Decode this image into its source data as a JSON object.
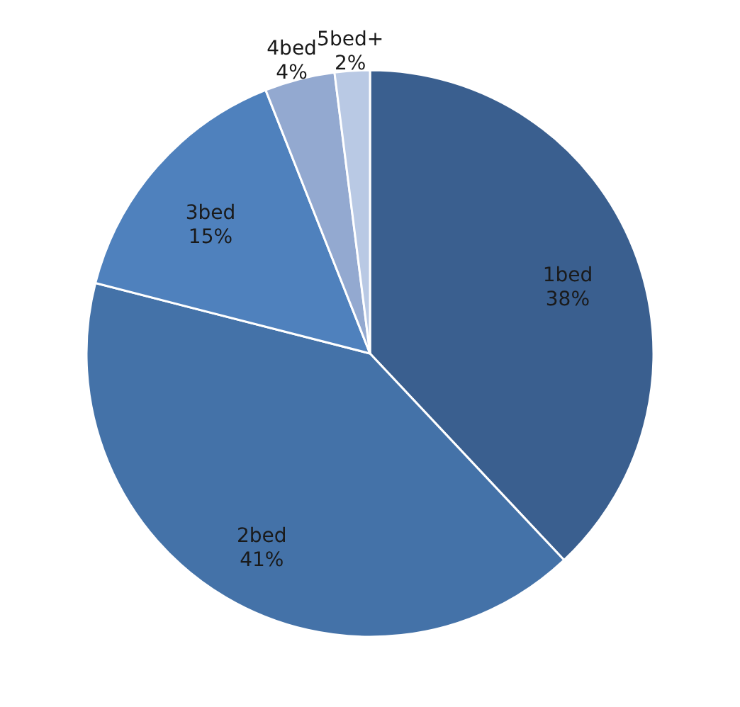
{
  "chart_data": {
    "type": "pie",
    "categories": [
      "1bed",
      "2bed",
      "3bed",
      "4bed",
      "5bed+"
    ],
    "values": [
      38,
      41,
      15,
      4,
      2
    ],
    "value_labels": [
      "38%",
      "41%",
      "15%",
      "4%",
      "2%"
    ],
    "colors": [
      "#3a5f8f",
      "#4472a8",
      "#4f81bd",
      "#93a9d0",
      "#b9c9e4"
    ]
  }
}
